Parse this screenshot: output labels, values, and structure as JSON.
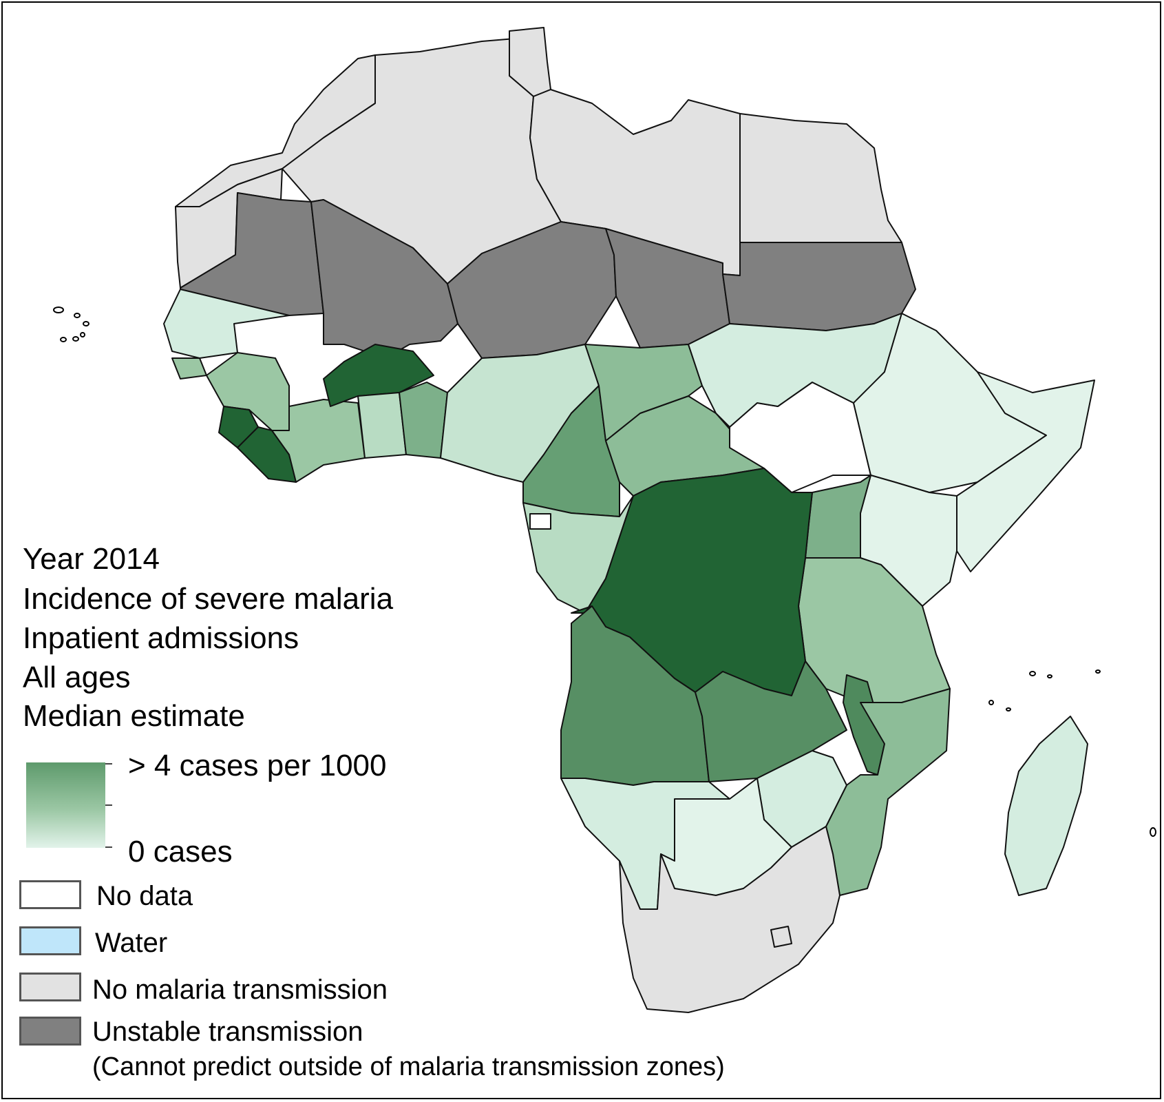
{
  "info": {
    "year": "Year 2014",
    "measure": "Incidence of severe malaria",
    "metric": "Inpatient admissions",
    "ages": "All ages",
    "estimate": "Median estimate"
  },
  "scale": {
    "max_label": "> 4 cases per 1000",
    "min_label": "0 cases",
    "max_value": 4,
    "min_value": 0,
    "unit": "cases per 1000",
    "color_high": "#5e9a6c",
    "color_low": "#e2f3ea"
  },
  "categories": [
    {
      "label": "No data",
      "color": "#ffffff"
    },
    {
      "label": "Water",
      "color": "#bfe6fa"
    },
    {
      "label": "No malaria transmission",
      "color": "#e2e2e2"
    },
    {
      "label": "Unstable transmission",
      "color": "#808080"
    }
  ],
  "unstable_note": "(Cannot predict outside of malaria transmission zones)",
  "colors": {
    "very_high": "#216434",
    "high": "#578f64",
    "mid_high": "#7db08a",
    "mid": "#9bc7a4",
    "low_mid": "#b8dcc3",
    "low": "#d4ede0",
    "very_low": "#e2f3ea",
    "no_transmission": "#e2e2e2",
    "unstable": "#808080",
    "no_data": "#ffffff"
  }
}
